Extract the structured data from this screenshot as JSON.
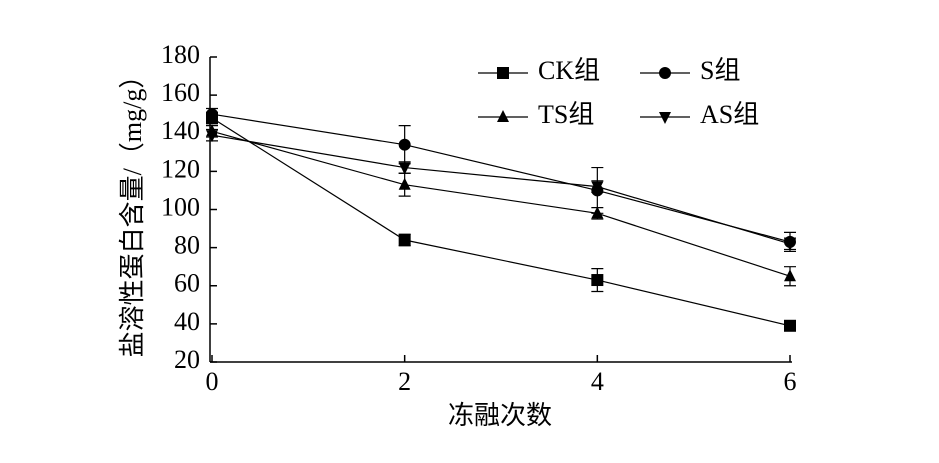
{
  "chart_data": {
    "type": "line",
    "xlabel": "冻融次数",
    "ylabel": "盐溶性蛋白含量/（mg/g）",
    "x": [
      0,
      2,
      4,
      6
    ],
    "xlim": [
      0,
      6
    ],
    "xticks": [
      0,
      2,
      4,
      6
    ],
    "ylim": [
      20,
      180
    ],
    "yticks": [
      20,
      40,
      60,
      80,
      100,
      120,
      140,
      160,
      180
    ],
    "legend": "upper right",
    "series": [
      {
        "name": "CK组",
        "color": "#000000",
        "marker": "square",
        "values": [
          148,
          84,
          63,
          39
        ],
        "errors": [
          3,
          3,
          6,
          1.5
        ]
      },
      {
        "name": "S组",
        "color": "#000000",
        "marker": "circle",
        "values": [
          150,
          134,
          110,
          83
        ],
        "errors": [
          3,
          10,
          12,
          5
        ]
      },
      {
        "name": "TS组",
        "color": "#000000",
        "marker": "triangle-up",
        "values": [
          141,
          113,
          98,
          65
        ],
        "errors": [
          3,
          6,
          3,
          5
        ]
      },
      {
        "name": "AS组",
        "color": "#000000",
        "marker": "triangle-down",
        "values": [
          139,
          122,
          112,
          82
        ],
        "errors": [
          3,
          3,
          3,
          3
        ]
      }
    ]
  }
}
